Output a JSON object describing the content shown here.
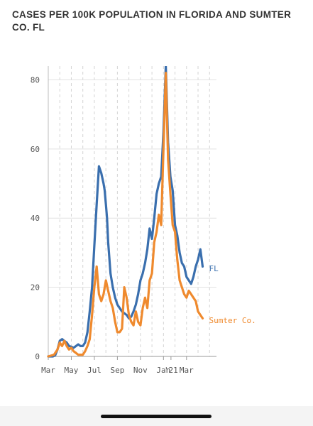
{
  "chart_data": {
    "type": "line",
    "title": "CASES PER 100K POPULATION IN FLORIDA AND SUMTER CO. FL",
    "xlabel": "",
    "ylabel": "",
    "ylim": [
      0,
      84
    ],
    "xlim": [
      0,
      14.6
    ],
    "y_ticks": [
      0,
      20,
      40,
      60,
      80
    ],
    "x_ticks": [
      {
        "label": "Mar",
        "value": 0
      },
      {
        "label": "May",
        "value": 2
      },
      {
        "label": "Jul",
        "value": 4
      },
      {
        "label": "Sep",
        "value": 6
      },
      {
        "label": "Nov",
        "value": 8
      },
      {
        "label": "Jan",
        "value": 10
      },
      {
        "label": "'21",
        "value": 10.65
      },
      {
        "label": "Mar",
        "value": 12
      }
    ],
    "minor_gridlines": [
      0,
      1,
      2,
      3,
      4,
      5,
      6,
      7,
      8,
      9,
      10,
      11,
      12,
      13,
      14
    ],
    "grid": true,
    "legend": "labels at line ends (right)",
    "series": [
      {
        "name": "FL",
        "color": "#3a6fae",
        "x": [
          0,
          0.4,
          0.6,
          0.8,
          1.0,
          1.2,
          1.4,
          1.6,
          1.8,
          2.0,
          2.2,
          2.4,
          2.6,
          2.8,
          3.0,
          3.2,
          3.4,
          3.6,
          3.8,
          4.0,
          4.2,
          4.4,
          4.6,
          4.8,
          4.9,
          5.0,
          5.1,
          5.2,
          5.4,
          5.6,
          5.8,
          6.0,
          6.2,
          6.4,
          6.6,
          6.8,
          7.0,
          7.2,
          7.4,
          7.6,
          7.8,
          8.0,
          8.2,
          8.4,
          8.6,
          8.8,
          9.0,
          9.2,
          9.4,
          9.6,
          9.8,
          10.0,
          10.2,
          10.4,
          10.6,
          10.8,
          11.0,
          11.2,
          11.4,
          11.6,
          11.8,
          12.0,
          12.2,
          12.4,
          12.6,
          12.8,
          13.0,
          13.2,
          13.4
        ],
        "values": [
          0,
          0,
          0.3,
          2,
          4.5,
          5,
          4.5,
          4,
          3,
          2.8,
          2.5,
          3,
          3.5,
          3,
          3,
          4,
          7,
          13,
          20,
          32,
          44,
          55,
          53,
          50,
          48,
          44,
          40,
          33,
          24,
          20,
          17,
          15,
          14,
          13,
          12.5,
          12,
          11,
          11.5,
          13,
          15,
          18,
          22,
          24,
          27,
          31,
          37,
          34,
          40,
          47,
          50,
          52,
          65,
          84,
          62,
          52,
          48,
          38,
          35,
          30,
          27,
          26,
          23,
          22,
          21,
          23,
          26,
          28,
          31,
          26
        ]
      },
      {
        "name": "Sumter Co.",
        "color": "#ef8a2e",
        "x": [
          0,
          0.5,
          0.8,
          1.0,
          1.2,
          1.4,
          1.6,
          1.8,
          2.0,
          2.2,
          2.4,
          2.6,
          2.8,
          3.0,
          3.2,
          3.4,
          3.6,
          3.8,
          4.0,
          4.2,
          4.4,
          4.6,
          4.8,
          5.0,
          5.2,
          5.4,
          5.6,
          5.8,
          6.0,
          6.2,
          6.4,
          6.6,
          6.8,
          7.0,
          7.2,
          7.4,
          7.6,
          7.8,
          8.0,
          8.2,
          8.4,
          8.6,
          8.8,
          9.0,
          9.2,
          9.4,
          9.6,
          9.8,
          10.0,
          10.2,
          10.4,
          10.6,
          10.8,
          11.0,
          11.2,
          11.4,
          11.6,
          11.8,
          12.0,
          12.2,
          12.4,
          12.6,
          12.8,
          13.0,
          13.2,
          13.4
        ],
        "values": [
          0,
          0.5,
          2,
          4,
          3,
          4.5,
          3,
          2,
          2.5,
          1.5,
          1,
          0.5,
          0.5,
          0.5,
          1.5,
          3,
          5,
          12,
          20,
          26,
          18,
          16,
          18,
          22,
          19,
          16,
          14,
          10,
          7,
          7,
          8,
          20,
          17,
          12,
          10,
          9,
          13,
          10,
          9,
          14,
          17,
          14,
          22,
          24,
          33,
          36,
          41,
          38,
          60,
          82,
          57,
          47,
          38,
          36,
          28,
          22,
          20,
          18,
          17,
          19,
          18,
          17,
          16,
          13,
          12,
          11
        ]
      }
    ]
  }
}
